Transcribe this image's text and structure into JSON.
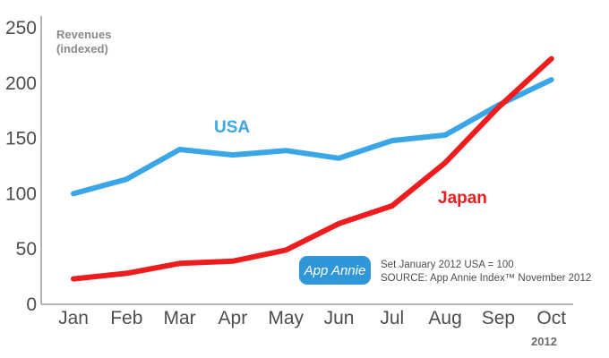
{
  "chart_data": {
    "type": "line",
    "ylabel": [
      "Revenues",
      "(indexed)"
    ],
    "year_label": "2012",
    "categories": [
      "Jan",
      "Feb",
      "Mar",
      "Apr",
      "May",
      "Jun",
      "Jul",
      "Aug",
      "Sep",
      "Oct"
    ],
    "y_ticks": [
      "0",
      "50",
      "100",
      "150",
      "200",
      "250"
    ],
    "ylim": [
      0,
      250
    ],
    "grid": false,
    "series": [
      {
        "name": "USA",
        "color": "#3aa6e8",
        "values": [
          100,
          113,
          140,
          135,
          139,
          132,
          148,
          153,
          180,
          203
        ]
      },
      {
        "name": "Japan",
        "color": "#ee1c1c",
        "values": [
          23,
          28,
          37,
          39,
          49,
          73,
          89,
          128,
          178,
          222
        ]
      }
    ],
    "annotations": {
      "note_line1": "Set January 2012 USA = 100",
      "note_line2": "SOURCE: App Annie Index™ November 2012",
      "badge": "App Annie",
      "badge_color": "#2f96d8"
    }
  }
}
